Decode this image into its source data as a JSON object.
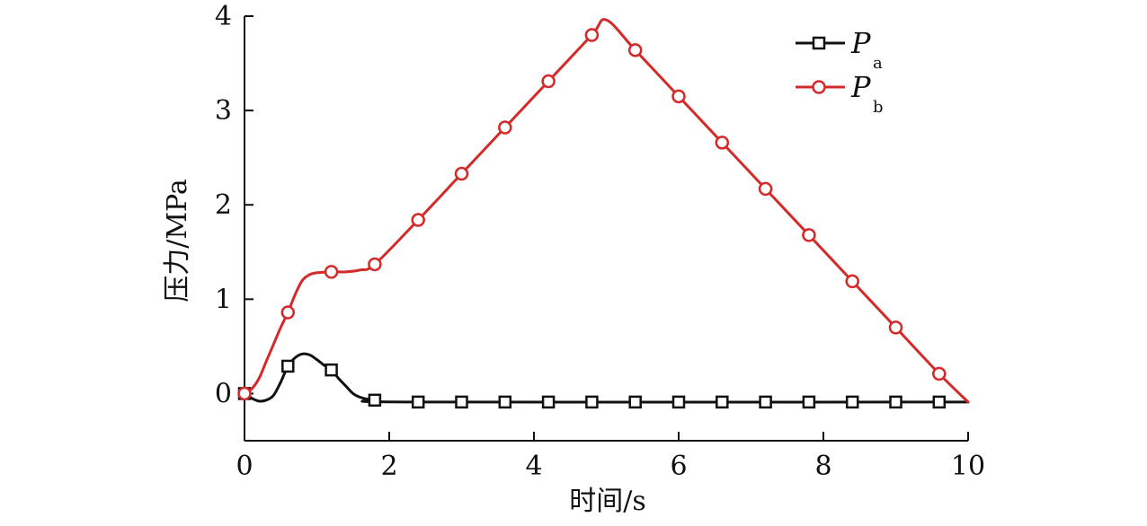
{
  "chart_data": {
    "type": "line",
    "title": "",
    "xlabel": "时间/s",
    "ylabel": "压力/MPa",
    "xlim": [
      0,
      10
    ],
    "ylim": [
      -0.5,
      4
    ],
    "x_ticks": [
      0,
      2,
      4,
      6,
      8,
      10
    ],
    "y_ticks": [
      0,
      1,
      2,
      3,
      4
    ],
    "x_tick_labels": [
      "0",
      "2",
      "4",
      "6",
      "8",
      "10"
    ],
    "y_tick_labels": [
      "0",
      "1",
      "2",
      "3",
      "4"
    ],
    "grid": false,
    "legend_position": "top-right",
    "series": [
      {
        "name": "P",
        "subscript": "a",
        "color": "#111111",
        "marker": "square",
        "curve": [
          [
            0,
            0
          ],
          [
            0.1,
            -0.05
          ],
          [
            0.2,
            -0.08
          ],
          [
            0.3,
            -0.07
          ],
          [
            0.4,
            -0.02
          ],
          [
            0.5,
            0.12
          ],
          [
            0.6,
            0.29
          ],
          [
            0.7,
            0.38
          ],
          [
            0.8,
            0.42
          ],
          [
            0.9,
            0.41
          ],
          [
            1.0,
            0.36
          ],
          [
            1.1,
            0.3
          ],
          [
            1.2,
            0.25
          ],
          [
            1.3,
            0.16
          ],
          [
            1.4,
            0.08
          ],
          [
            1.5,
            0.0
          ],
          [
            1.6,
            -0.04
          ],
          [
            1.7,
            -0.06
          ],
          [
            1.8,
            -0.07
          ],
          [
            2.4,
            -0.09
          ],
          [
            10,
            -0.09
          ]
        ],
        "markers": [
          [
            0,
            0
          ],
          [
            0.6,
            0.29
          ],
          [
            1.2,
            0.25
          ],
          [
            1.8,
            -0.07
          ],
          [
            2.4,
            -0.09
          ],
          [
            3.0,
            -0.09
          ],
          [
            3.6,
            -0.09
          ],
          [
            4.2,
            -0.09
          ],
          [
            4.8,
            -0.09
          ],
          [
            5.4,
            -0.09
          ],
          [
            6.0,
            -0.09
          ],
          [
            6.6,
            -0.09
          ],
          [
            7.2,
            -0.09
          ],
          [
            7.8,
            -0.09
          ],
          [
            8.4,
            -0.09
          ],
          [
            9.0,
            -0.09
          ],
          [
            9.6,
            -0.09
          ]
        ]
      },
      {
        "name": "P",
        "subscript": "b",
        "color": "#d42a2a",
        "marker": "circle",
        "curve": [
          [
            0,
            0
          ],
          [
            0.1,
            0.05
          ],
          [
            0.2,
            0.16
          ],
          [
            0.3,
            0.34
          ],
          [
            0.4,
            0.52
          ],
          [
            0.5,
            0.7
          ],
          [
            0.6,
            0.86
          ],
          [
            0.7,
            1.05
          ],
          [
            0.8,
            1.2
          ],
          [
            0.9,
            1.26
          ],
          [
            1.0,
            1.28
          ],
          [
            1.2,
            1.29
          ],
          [
            1.4,
            1.29
          ],
          [
            1.6,
            1.31
          ],
          [
            1.8,
            1.37
          ],
          [
            2.4,
            1.84
          ],
          [
            3.0,
            2.33
          ],
          [
            3.6,
            2.82
          ],
          [
            4.2,
            3.31
          ],
          [
            4.8,
            3.8
          ],
          [
            5.0,
            3.96
          ],
          [
            5.4,
            3.64
          ],
          [
            6.0,
            3.15
          ],
          [
            6.6,
            2.66
          ],
          [
            7.2,
            2.17
          ],
          [
            7.8,
            1.68
          ],
          [
            8.4,
            1.19
          ],
          [
            9.0,
            0.7
          ],
          [
            9.6,
            0.21
          ],
          [
            10.0,
            -0.09
          ]
        ],
        "markers": [
          [
            0,
            0
          ],
          [
            0.6,
            0.86
          ],
          [
            1.2,
            1.29
          ],
          [
            1.8,
            1.37
          ],
          [
            2.4,
            1.84
          ],
          [
            3.0,
            2.33
          ],
          [
            3.6,
            2.82
          ],
          [
            4.2,
            3.31
          ],
          [
            4.8,
            3.8
          ],
          [
            5.4,
            3.64
          ],
          [
            6.0,
            3.15
          ],
          [
            6.6,
            2.66
          ],
          [
            7.2,
            2.17
          ],
          [
            7.8,
            1.68
          ],
          [
            8.4,
            1.19
          ],
          [
            9.0,
            0.7
          ],
          [
            9.6,
            0.21
          ]
        ]
      }
    ]
  }
}
